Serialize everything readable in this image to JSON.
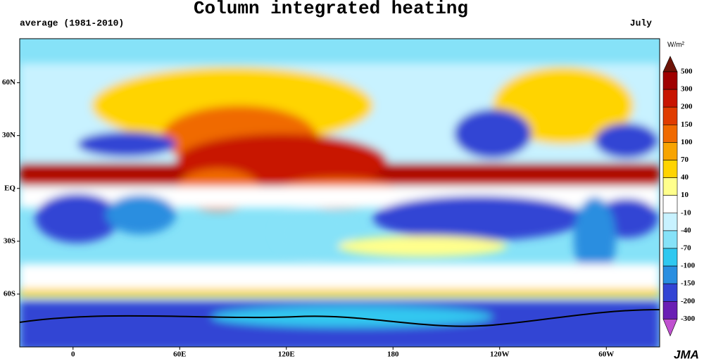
{
  "header": {
    "title": "Column integrated heating",
    "subtitle": "average (1981-2010)",
    "period": "July"
  },
  "map": {
    "lonlim": [
      -30,
      330
    ],
    "latlim": [
      -90,
      85
    ],
    "lon_ticks": [
      0,
      {
        "value": 60,
        "label": "60E"
      },
      {
        "value": 120,
        "label": "120E"
      },
      180,
      {
        "value": 240,
        "label": "120W"
      },
      {
        "value": 300,
        "label": "60W"
      }
    ],
    "lat_ticks": [
      {
        "value": 60,
        "label": "60N"
      },
      {
        "value": 30,
        "label": "30N"
      },
      {
        "value": 0,
        "label": "EQ"
      },
      {
        "value": -30,
        "label": "30S"
      },
      {
        "value": -60,
        "label": "60S"
      }
    ]
  },
  "colorbar": {
    "unit": "W/m²",
    "levels": [
      500,
      300,
      200,
      150,
      100,
      70,
      40,
      10,
      -10,
      -40,
      -70,
      -100,
      -150,
      -200,
      -300
    ],
    "colors": [
      "#6e1408",
      "#a00000",
      "#c81400",
      "#e03c00",
      "#f06a00",
      "#f8a400",
      "#ffd400",
      "#ffff8c",
      "#ffffff",
      "#c8f2ff",
      "#86e2f8",
      "#30c8f0",
      "#2a8ee0",
      "#3344d4",
      "#6a1fb4",
      "#c050d0"
    ]
  },
  "credit": "JMA"
}
